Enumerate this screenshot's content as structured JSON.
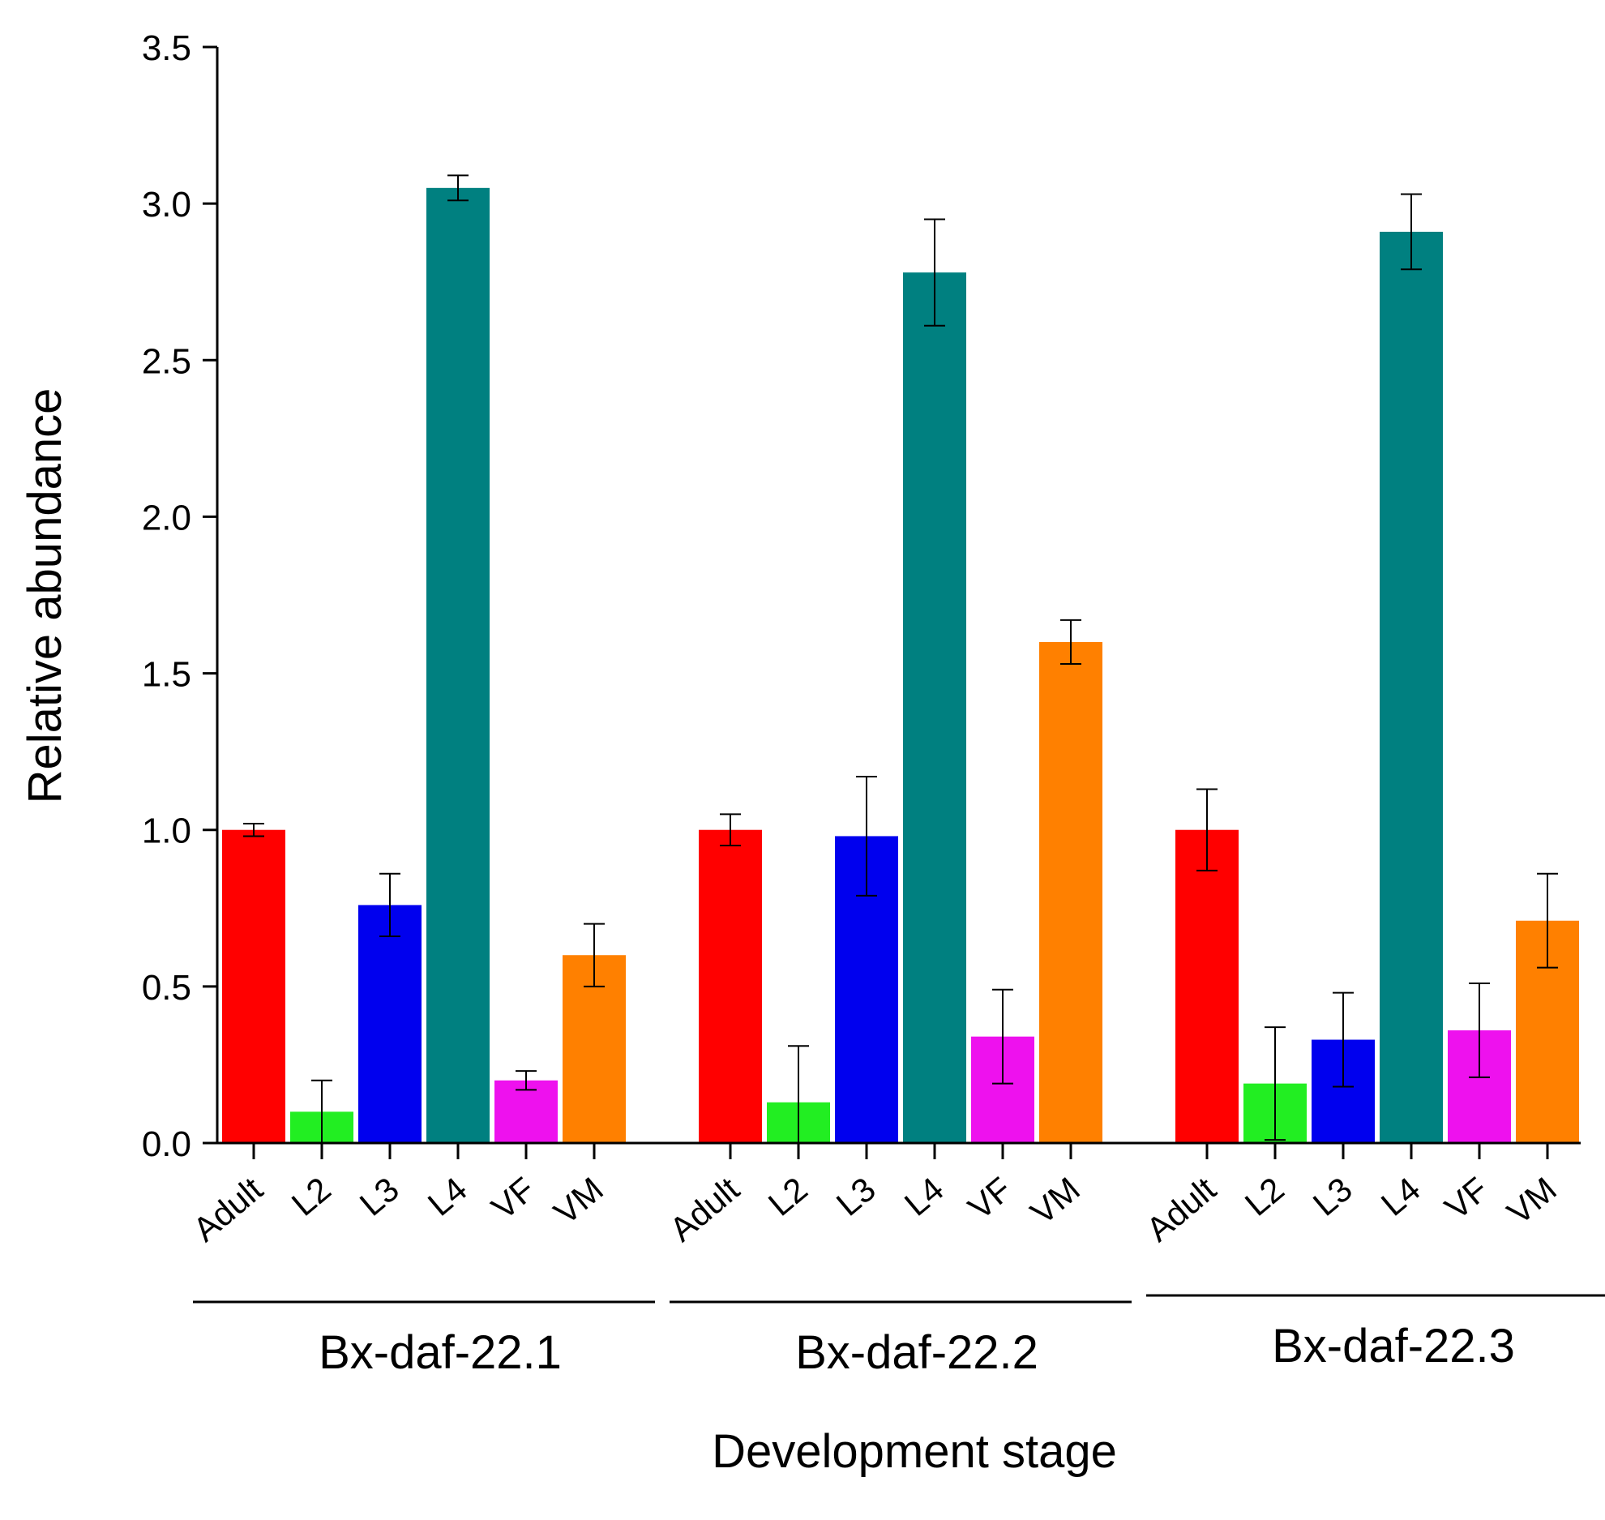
{
  "chart_data": {
    "type": "bar",
    "title": "",
    "xlabel": "Development stage",
    "ylabel": "Relative abundance",
    "ylim": [
      0,
      3.5
    ],
    "yticks": [
      "0.0",
      "0.5",
      "1.0",
      "1.5",
      "2.0",
      "2.5",
      "3.0",
      "3.5"
    ],
    "grid": false,
    "legend": "none",
    "categories": [
      "Adult",
      "L2",
      "L3",
      "L4",
      "VF",
      "VM"
    ],
    "colors": {
      "Adult": "#ff0000",
      "L2": "#22ee22",
      "L3": "#0000ee",
      "L4": "#008080",
      "VF": "#ee11ee",
      "VM": "#ff8000"
    },
    "groups": [
      {
        "name": "Bx-daf-22.1",
        "values": [
          1.0,
          0.1,
          0.76,
          3.05,
          0.2,
          0.6
        ],
        "errors": [
          0.02,
          0.1,
          0.1,
          0.04,
          0.03,
          0.1
        ]
      },
      {
        "name": "Bx-daf-22.2",
        "values": [
          1.0,
          0.13,
          0.98,
          2.78,
          0.34,
          1.6
        ],
        "errors": [
          0.05,
          0.18,
          0.19,
          0.17,
          0.15,
          0.07
        ]
      },
      {
        "name": "Bx-daf-22.3",
        "values": [
          1.0,
          0.19,
          0.33,
          2.91,
          0.36,
          0.71
        ],
        "errors": [
          0.13,
          0.18,
          0.15,
          0.12,
          0.15,
          0.15
        ]
      }
    ]
  }
}
